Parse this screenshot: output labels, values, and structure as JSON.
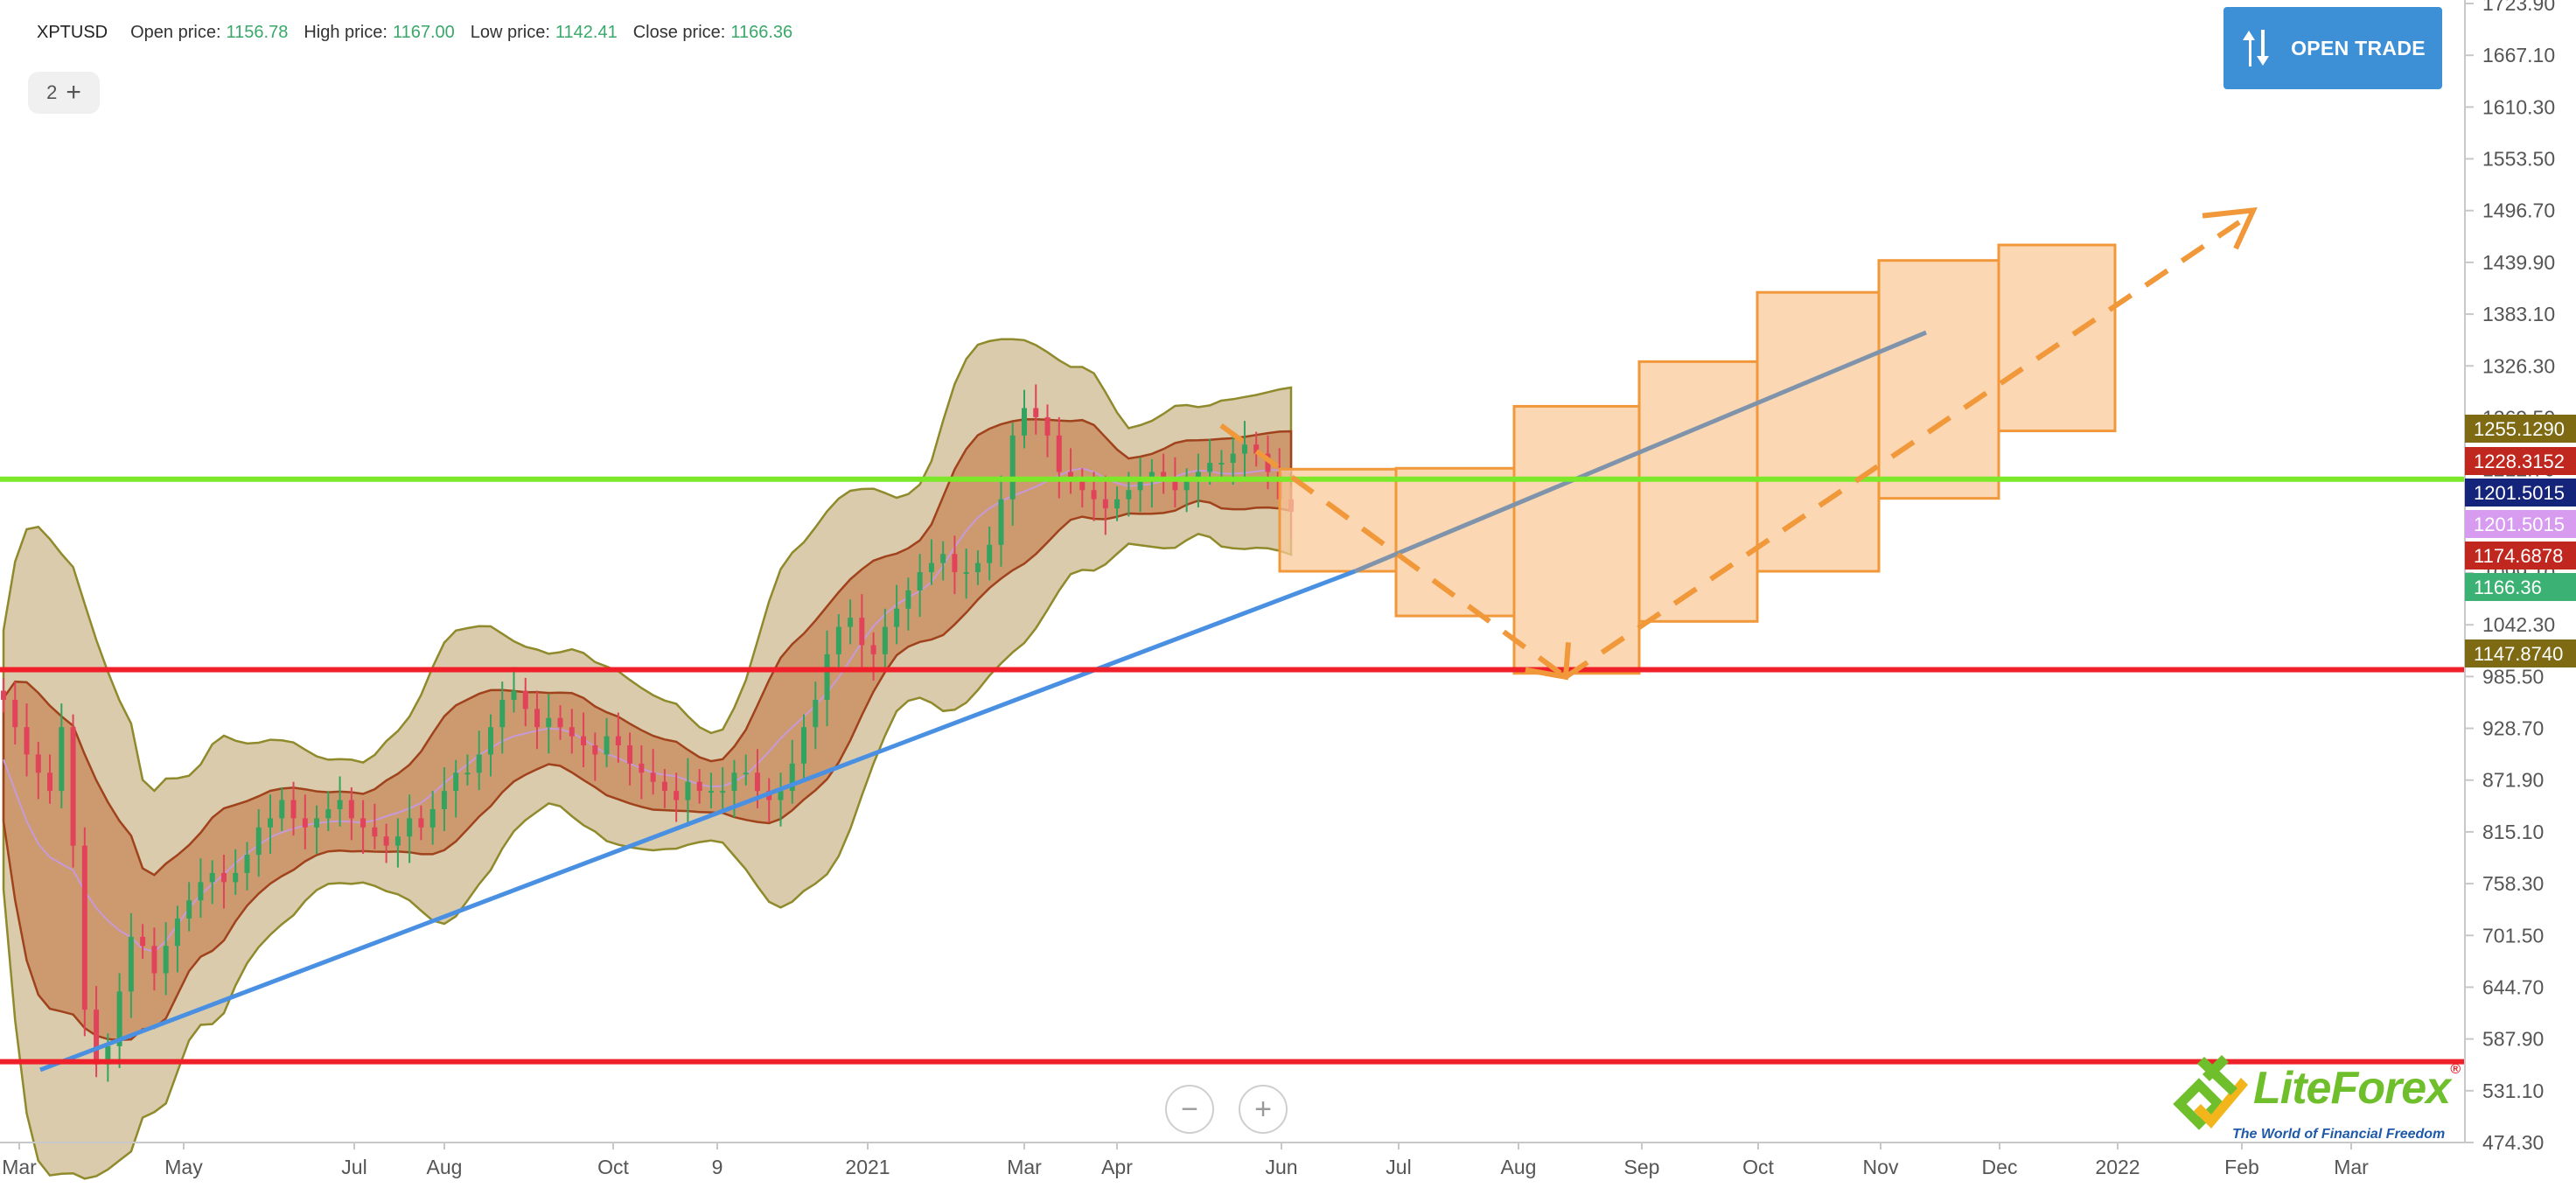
{
  "header": {
    "symbol": "XPTUSD",
    "open_label": "Open price:",
    "open_value": "1156.78",
    "high_label": "High price:",
    "high_value": "1167.00",
    "low_label": "Low price:",
    "low_value": "1142.41",
    "close_label": "Close price:",
    "close_value": "1166.36"
  },
  "toolbar": {
    "layers_count": "2",
    "add_glyph": "+",
    "open_trade_label": "OPEN TRADE",
    "zoom_out_glyph": "−",
    "zoom_in_glyph": "+"
  },
  "logo": {
    "brand": "LiteForex",
    "registered_mark": "®",
    "tagline": "The World of Financial Freedom"
  },
  "colors": {
    "up_candle": "#33a35f",
    "down_candle": "#e0435a",
    "band_fill": "#b9a067",
    "inner_band_fill": "#c47a48",
    "band_stroke": "#8f8a2b",
    "forecast_box_fill": "#f9c99b",
    "forecast_box_stroke": "#f0983a",
    "forecast_arrow": "#f0983a",
    "trendline": "#4a90e2",
    "trendline_projection": "#7f93aa",
    "support_line": "#f0202a",
    "resistance_line": "#7ce82a",
    "open_trade_button": "#3d8fd6",
    "logo_green": "#6fbf2d",
    "logo_yellow": "#f2b51b"
  },
  "icons": [
    "up-down-arrows-icon",
    "plus-icon",
    "minus-icon",
    "liteforex-logo-icon"
  ],
  "chart_data": {
    "type": "candlestick",
    "symbol": "XPTUSD",
    "ylim": [
      474.3,
      1723.9
    ],
    "y_ticks": [
      "1723.90",
      "1667.10",
      "1610.30",
      "1553.50",
      "1496.70",
      "1439.90",
      "1383.10",
      "1326.30",
      "1269.50",
      "1212.70",
      "1155.90",
      "1099.10",
      "1042.30",
      "985.50",
      "928.70",
      "871.90",
      "815.10",
      "758.30",
      "701.50",
      "644.70",
      "587.90",
      "531.10",
      "474.30"
    ],
    "x_ticks": [
      "Mar",
      "May",
      "Jul",
      "Aug",
      "Oct",
      "9",
      "2021",
      "Mar",
      "Apr",
      "Jun",
      "Jul",
      "Aug",
      "Sep",
      "Oct",
      "Nov",
      "Dec",
      "2022",
      "Feb",
      "Mar"
    ],
    "price_labels": [
      {
        "text": "1255.1290",
        "value": 1255.129,
        "color": "#7d6a12"
      },
      {
        "text": "1228.3152",
        "value": 1228.3152,
        "color": "#c0271e"
      },
      {
        "text": "1201.5015",
        "value": 1201.5015,
        "color": "#14247a"
      },
      {
        "text": "1201.5015",
        "value": 1201.5015,
        "color": "#d79cf0"
      },
      {
        "text": "1174.6878",
        "value": 1174.6878,
        "color": "#c0271e"
      },
      {
        "text": "1166.36",
        "value": 1166.36,
        "color": "#3bb273"
      },
      {
        "text": "1147.8740",
        "value": 1147.874,
        "color": "#7d6a12"
      }
    ],
    "horizontal_levels": [
      {
        "name": "resistance",
        "value": 1202,
        "color": "#7ce82a"
      },
      {
        "name": "support",
        "value": 993,
        "color": "#f0202a"
      },
      {
        "name": "support",
        "value": 563,
        "color": "#f0202a"
      }
    ],
    "candles_close": [
      960,
      930,
      900,
      880,
      860,
      930,
      800,
      620,
      560,
      580,
      640,
      700,
      690,
      660,
      690,
      720,
      740,
      760,
      770,
      760,
      770,
      790,
      820,
      830,
      850,
      830,
      820,
      830,
      840,
      850,
      830,
      820,
      810,
      800,
      810,
      830,
      820,
      840,
      860,
      880,
      880,
      900,
      930,
      960,
      970,
      950,
      930,
      940,
      930,
      920,
      910,
      900,
      920,
      910,
      890,
      880,
      870,
      860,
      850,
      870,
      860,
      860,
      860,
      880,
      880,
      860,
      850,
      860,
      890,
      930,
      960,
      1010,
      1040,
      1050,
      1020,
      1010,
      1040,
      1060,
      1080,
      1100,
      1110,
      1120,
      1100,
      1100,
      1110,
      1130,
      1180,
      1250,
      1280,
      1270,
      1250,
      1210,
      1200,
      1190,
      1180,
      1170,
      1180,
      1190,
      1200,
      1210,
      1200,
      1190,
      1200,
      1210,
      1220,
      1220,
      1230,
      1240,
      1230,
      1210,
      1180,
      1166.36
    ]
  }
}
